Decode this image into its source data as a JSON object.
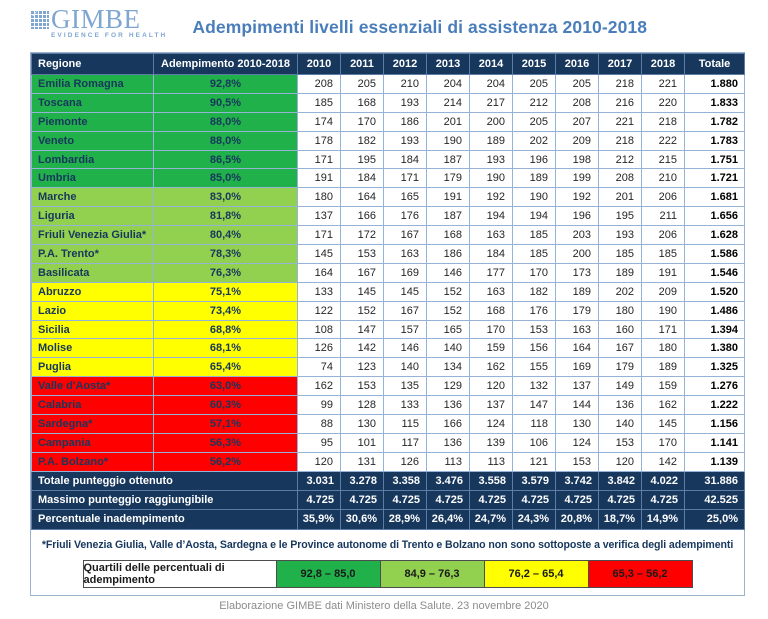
{
  "logo": {
    "name": "GIMBE",
    "tagline": "EVIDENCE FOR HEALTH"
  },
  "title": "Adempimenti livelli essenziali di assistenza 2010-2018",
  "table": {
    "headers": [
      "Regione",
      "Adempimento 2010-2018",
      "2010",
      "2011",
      "2012",
      "2013",
      "2014",
      "2015",
      "2016",
      "2017",
      "2018",
      "Totale"
    ],
    "rows": [
      {
        "region": "Emilia Romagna",
        "adempimento": "92,8%",
        "tier": "green-dark",
        "values": [
          208,
          205,
          210,
          204,
          204,
          205,
          205,
          218,
          221
        ],
        "total": "1.880"
      },
      {
        "region": "Toscana",
        "adempimento": "90,5%",
        "tier": "green-dark",
        "values": [
          185,
          168,
          193,
          214,
          217,
          212,
          208,
          216,
          220
        ],
        "total": "1.833"
      },
      {
        "region": "Piemonte",
        "adempimento": "88,0%",
        "tier": "green-dark",
        "values": [
          174,
          170,
          186,
          201,
          200,
          205,
          207,
          221,
          218
        ],
        "total": "1.782"
      },
      {
        "region": "Veneto",
        "adempimento": "88,0%",
        "tier": "green-dark",
        "values": [
          178,
          182,
          193,
          190,
          189,
          202,
          209,
          218,
          222
        ],
        "total": "1.783"
      },
      {
        "region": "Lombardia",
        "adempimento": "86,5%",
        "tier": "green-dark",
        "values": [
          171,
          195,
          184,
          187,
          193,
          196,
          198,
          212,
          215
        ],
        "total": "1.751"
      },
      {
        "region": "Umbria",
        "adempimento": "85,0%",
        "tier": "green-dark",
        "values": [
          191,
          184,
          171,
          179,
          190,
          189,
          199,
          208,
          210
        ],
        "total": "1.721"
      },
      {
        "region": "Marche",
        "adempimento": "83,0%",
        "tier": "green-light",
        "values": [
          180,
          164,
          165,
          191,
          192,
          190,
          192,
          201,
          206
        ],
        "total": "1.681"
      },
      {
        "region": "Liguria",
        "adempimento": "81,8%",
        "tier": "green-light",
        "values": [
          137,
          166,
          176,
          187,
          194,
          194,
          196,
          195,
          211
        ],
        "total": "1.656"
      },
      {
        "region": "Friuli Venezia Giulia*",
        "adempimento": "80,4%",
        "tier": "green-light",
        "values": [
          171,
          172,
          167,
          168,
          163,
          185,
          203,
          193,
          206
        ],
        "total": "1.628"
      },
      {
        "region": "P.A. Trento*",
        "adempimento": "78,3%",
        "tier": "green-light",
        "values": [
          145,
          153,
          163,
          186,
          184,
          185,
          200,
          185,
          185
        ],
        "total": "1.586"
      },
      {
        "region": "Basilicata",
        "adempimento": "76,3%",
        "tier": "green-light",
        "values": [
          164,
          167,
          169,
          146,
          177,
          170,
          173,
          189,
          191
        ],
        "total": "1.546"
      },
      {
        "region": "Abruzzo",
        "adempimento": "75,1%",
        "tier": "yellow",
        "values": [
          133,
          145,
          145,
          152,
          163,
          182,
          189,
          202,
          209
        ],
        "total": "1.520"
      },
      {
        "region": "Lazio",
        "adempimento": "73,4%",
        "tier": "yellow",
        "values": [
          122,
          152,
          167,
          152,
          168,
          176,
          179,
          180,
          190
        ],
        "total": "1.486"
      },
      {
        "region": "Sicilia",
        "adempimento": "68,8%",
        "tier": "yellow",
        "values": [
          108,
          147,
          157,
          165,
          170,
          153,
          163,
          160,
          171
        ],
        "total": "1.394"
      },
      {
        "region": "Molise",
        "adempimento": "68,1%",
        "tier": "yellow",
        "values": [
          126,
          142,
          146,
          140,
          159,
          156,
          164,
          167,
          180
        ],
        "total": "1.380"
      },
      {
        "region": "Puglia",
        "adempimento": "65,4%",
        "tier": "yellow",
        "values": [
          74,
          123,
          140,
          134,
          162,
          155,
          169,
          179,
          189
        ],
        "total": "1.325"
      },
      {
        "region": "Valle d'Aosta*",
        "adempimento": "63,0%",
        "tier": "red",
        "values": [
          162,
          153,
          135,
          129,
          120,
          132,
          137,
          149,
          159
        ],
        "total": "1.276"
      },
      {
        "region": "Calabria",
        "adempimento": "60,3%",
        "tier": "red",
        "values": [
          99,
          128,
          133,
          136,
          137,
          147,
          144,
          136,
          162
        ],
        "total": "1.222"
      },
      {
        "region": "Sardegna*",
        "adempimento": "57,1%",
        "tier": "red",
        "values": [
          88,
          130,
          115,
          166,
          124,
          118,
          130,
          140,
          145
        ],
        "total": "1.156"
      },
      {
        "region": "Campania",
        "adempimento": "56,3%",
        "tier": "red",
        "values": [
          95,
          101,
          117,
          136,
          139,
          106,
          124,
          153,
          170
        ],
        "total": "1.141"
      },
      {
        "region": "P.A. Bolzano*",
        "adempimento": "56,2%",
        "tier": "red",
        "values": [
          120,
          131,
          126,
          113,
          113,
          121,
          153,
          120,
          142
        ],
        "total": "1.139"
      }
    ],
    "footer_rows": [
      {
        "label": "Totale punteggio ottenuto",
        "values": [
          "3.031",
          "3.278",
          "3.358",
          "3.476",
          "3.558",
          "3.579",
          "3.742",
          "3.842",
          "4.022"
        ],
        "total": "31.886"
      },
      {
        "label": "Massimo punteggio raggiungibile",
        "values": [
          "4.725",
          "4.725",
          "4.725",
          "4.725",
          "4.725",
          "4.725",
          "4.725",
          "4.725",
          "4.725"
        ],
        "total": "42.525"
      },
      {
        "label": "Percentuale inadempimento",
        "values": [
          "35,9%",
          "30,6%",
          "28,9%",
          "26,4%",
          "24,7%",
          "24,3%",
          "20,8%",
          "18,7%",
          "14,9%"
        ],
        "total": "25,0%"
      }
    ]
  },
  "footnote": "*Friuli Venezia Giulia, Valle d’Aosta, Sardegna e le Province autonome di Trento e Bolzano non sono sottoposte a verifica degli adempimenti",
  "legend": {
    "label": "Quartili delle percentuali di adempimento",
    "items": [
      {
        "range": "92,8 – 85,0",
        "color": "#21b14b"
      },
      {
        "range": "84,9 – 76,3",
        "color": "#92d050"
      },
      {
        "range": "76,2 – 65,4",
        "color": "#ffff00"
      },
      {
        "range": "65,3 – 56,2",
        "color": "#ff0000"
      }
    ]
  },
  "caption": "Elaborazione GIMBE dati Ministero della Salute. 23 novembre 2020",
  "colors": {
    "header_navy": "#17375d",
    "title_blue": "#4a7ebb",
    "logo_blue": "#7ea6d0",
    "border_blue": "#95b3d7",
    "green_dark": "#21b14b",
    "green_light": "#92d050",
    "yellow": "#ffff00",
    "red": "#ff0000"
  }
}
